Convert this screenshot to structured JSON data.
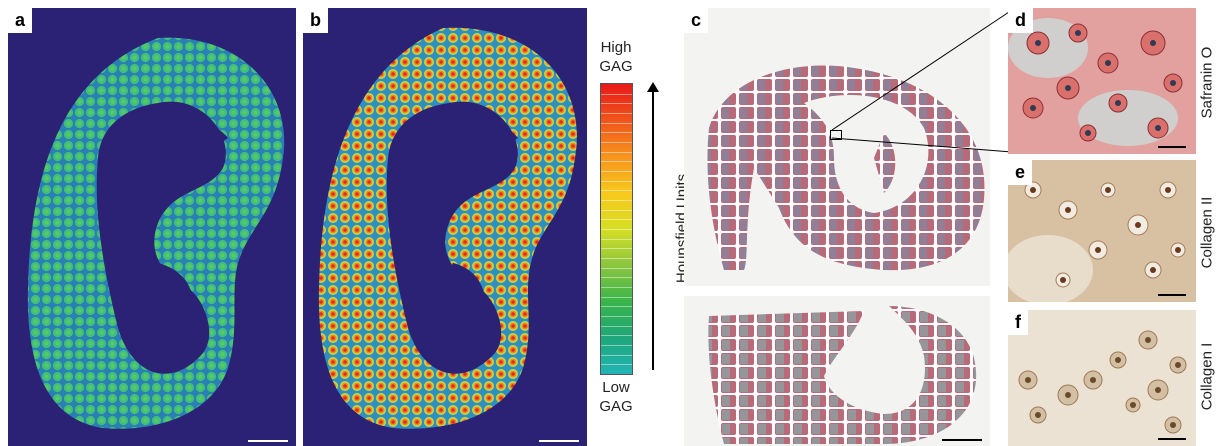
{
  "panels": {
    "a": "a",
    "b": "b",
    "c": "c",
    "d": "d",
    "e": "e",
    "f": "f"
  },
  "colorbar": {
    "high_line1": "High",
    "high_line2": "GAG",
    "low_line1": "Low",
    "low_line2": "GAG",
    "axis_label": "Hounsfield Units",
    "colors": [
      "#e8191a",
      "#f0541b",
      "#f7931e",
      "#f9c81c",
      "#d6df23",
      "#8cc63f",
      "#39b54a",
      "#1fa67a",
      "#22b5b5"
    ]
  },
  "stains": {
    "d": "Safranin O",
    "e": "Collagen II",
    "f": "Collagen I"
  },
  "colors": {
    "ct_background": "#2b2175",
    "ct_low": "#2fb5a0",
    "ct_high": "#e32b1a"
  }
}
